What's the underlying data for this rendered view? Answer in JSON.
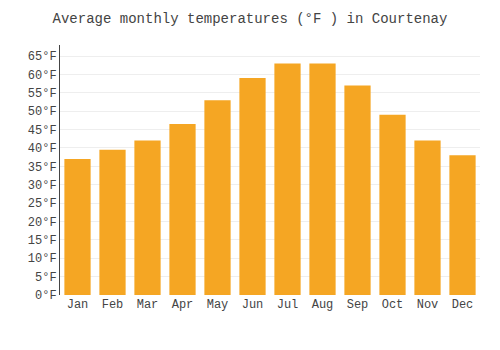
{
  "chart_data": {
    "type": "bar",
    "title": "Average monthly temperatures (°F ) in Courtenay",
    "categories": [
      "Jan",
      "Feb",
      "Mar",
      "Apr",
      "May",
      "Jun",
      "Jul",
      "Aug",
      "Sep",
      "Oct",
      "Nov",
      "Dec"
    ],
    "values": [
      37,
      39.5,
      42,
      46.5,
      53,
      59,
      63,
      63,
      57,
      49,
      42,
      38
    ],
    "color": "#F5A623",
    "ylim": [
      0,
      68
    ],
    "yticks": [
      {
        "value": 0,
        "label": "0°F"
      },
      {
        "value": 5,
        "label": "5°F"
      },
      {
        "value": 10,
        "label": "10°F"
      },
      {
        "value": 15,
        "label": "15°F"
      },
      {
        "value": 20,
        "label": "20°F"
      },
      {
        "value": 25,
        "label": "25°F"
      },
      {
        "value": 30,
        "label": "30°F"
      },
      {
        "value": 35,
        "label": "35°F"
      },
      {
        "value": 40,
        "label": "40°F"
      },
      {
        "value": 45,
        "label": "45°F"
      },
      {
        "value": 50,
        "label": "50°F"
      },
      {
        "value": 55,
        "label": "55°F"
      },
      {
        "value": 60,
        "label": "60°F"
      },
      {
        "value": 65,
        "label": "65°F"
      }
    ],
    "grid": true
  }
}
